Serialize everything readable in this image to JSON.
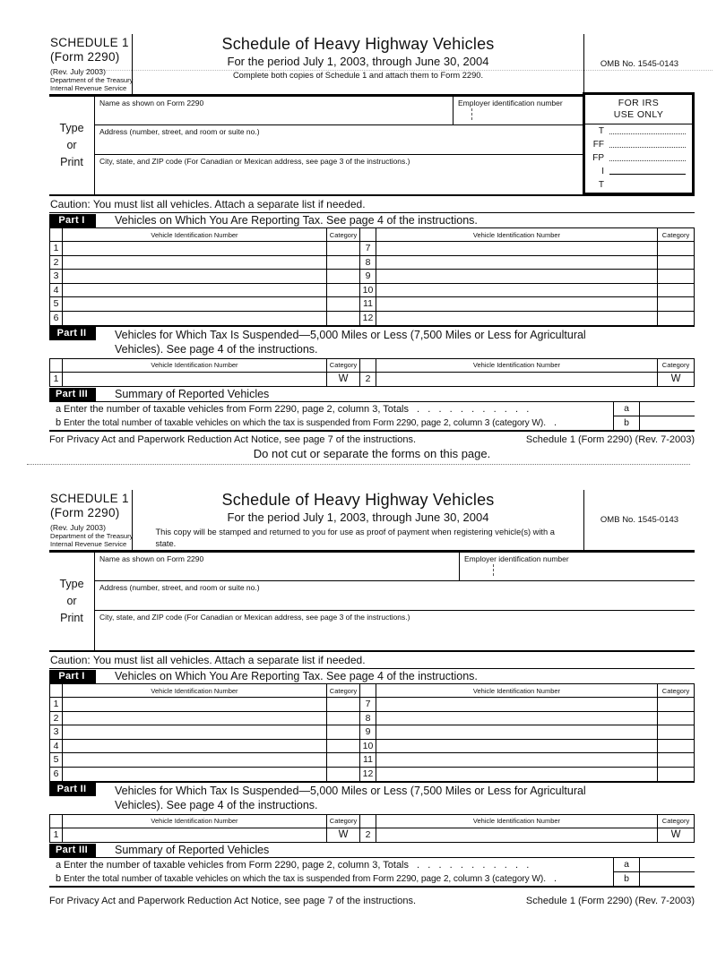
{
  "form": {
    "schedule_label": "SCHEDULE 1",
    "form_number": "(Form 2290)",
    "revision": "(Rev. July 2003)",
    "agency_line1": "Department of the Treasury",
    "agency_line2": "Internal Revenue Service",
    "title": "Schedule of Heavy Highway Vehicles",
    "period": "For the period July 1, 2003, through June 30, 2004",
    "omb": "OMB No. 1545-0143"
  },
  "copy1": {
    "instruction": "Complete both copies of Schedule 1 and attach them to Form 2290.",
    "do_not_cut": "Do not cut or separate the forms on this page."
  },
  "copy2": {
    "instruction": "This copy will be stamped and returned to you for use as proof of payment when registering vehicle(s) with a state."
  },
  "irs_use_only": {
    "title_line1": "FOR IRS",
    "title_line2": "USE ONLY",
    "row1": "T",
    "row2": "FF",
    "row3": "FP",
    "row4": "I",
    "row5": "T"
  },
  "entity": {
    "type_or_print_line1": "Type",
    "type_or_print_line2": "or",
    "type_or_print_line3": "Print",
    "name_label": "Name as shown on Form 2290",
    "ein_label": "Employer identification number",
    "address_label": "Address (number, street, and room or suite no.)",
    "city_label": "City, state, and ZIP code (For Canadian or Mexican address, see page 3 of the instructions.)"
  },
  "caution": "Caution: You must list all vehicles. Attach a separate list if needed.",
  "part1": {
    "label": "Part I",
    "title": "Vehicles on Which You Are Reporting Tax. See page 4 of the instructions."
  },
  "vin_table": {
    "vin_header": "Vehicle Identification Number",
    "category_header": "Category",
    "left_rows": [
      "1",
      "2",
      "3",
      "4",
      "5",
      "6"
    ],
    "right_rows": [
      "7",
      "8",
      "9",
      "10",
      "11",
      "12"
    ]
  },
  "part2": {
    "label": "Part II",
    "title": "Vehicles for Which Tax Is Suspended—5,000 Miles or Less (7,500 Miles or Less for Agricultural Vehicles). See page 4 of the instructions.",
    "left_row_num": "1",
    "left_category": "W",
    "right_row_num": "2",
    "right_category": "W"
  },
  "part3": {
    "label": "Part III",
    "title": "Summary of Reported Vehicles",
    "line_a_letter": "a",
    "line_a_text": "Enter the number of taxable vehicles from Form 2290, page 2, column 3, Totals",
    "line_a_dots": ".   .   .   .   .   .   .   .   .   .   .",
    "line_a_box_label": "a",
    "line_b_letter": "b",
    "line_b_text": "Enter the total number of taxable vehicles on which the tax is suspended from Form 2290, page 2, column 3 (category W).",
    "line_b_dots": ".",
    "line_b_box_label": "b"
  },
  "footer": {
    "privacy_notice": "For Privacy Act and Paperwork Reduction Act Notice, see page 7 of the instructions.",
    "form_id": "Schedule 1 (Form 2290) (Rev. 7-2003)"
  }
}
